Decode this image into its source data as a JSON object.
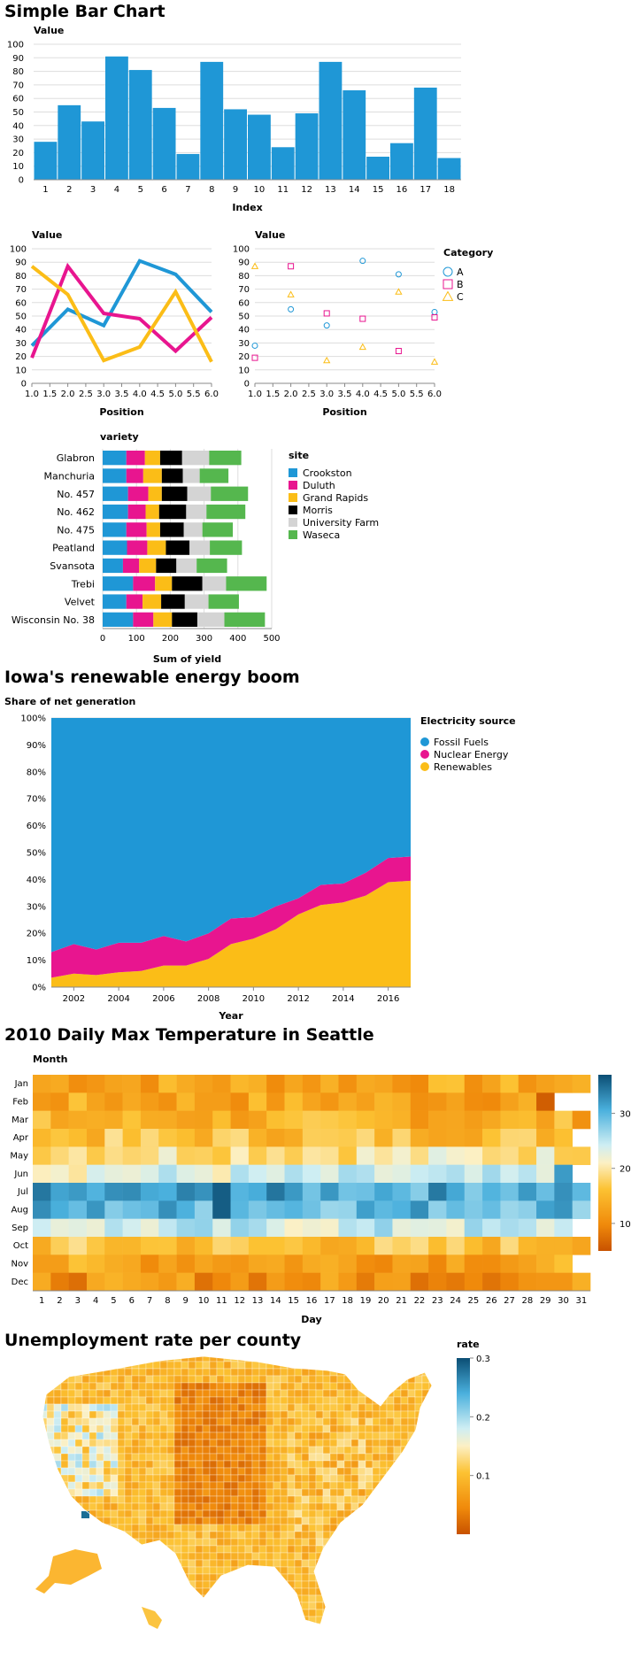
{
  "charts": {
    "bar": {
      "title": "Simple Bar Chart",
      "ylabel": "Value",
      "xlabel": "Index"
    },
    "line": {
      "ylabel": "Value",
      "xlabel": "Position"
    },
    "scatter": {
      "ylabel": "Value",
      "xlabel": "Position",
      "legend_title": "Category"
    },
    "barley": {
      "ylabel": "variety",
      "xlabel": "Sum of yield",
      "legend_title": "site"
    },
    "area": {
      "title": "Iowa's renewable energy boom",
      "ylabel": "Share of net generation",
      "xlabel": "Year",
      "legend_title": "Electricity source"
    },
    "heatmap": {
      "title": "2010 Daily Max Temperature in Seattle",
      "ylabel": "Month",
      "xlabel": "Day"
    },
    "map": {
      "title": "Unemployment rate per county",
      "legend_title": "rate"
    }
  },
  "chart_data": [
    {
      "type": "bar",
      "title": "Simple Bar Chart",
      "xlabel": "Index",
      "ylabel": "Value",
      "categories": [
        1,
        2,
        3,
        4,
        5,
        6,
        7,
        8,
        9,
        10,
        11,
        12,
        13,
        14,
        15,
        16,
        17,
        18
      ],
      "values": [
        28,
        55,
        43,
        91,
        81,
        53,
        19,
        87,
        52,
        48,
        24,
        49,
        87,
        66,
        17,
        27,
        68,
        16
      ],
      "ylim": [
        0,
        100
      ],
      "yticks": [
        0,
        10,
        20,
        30,
        40,
        50,
        60,
        70,
        80,
        90,
        100
      ],
      "color": "#1f97d6",
      "grid": true
    },
    {
      "type": "line",
      "xlabel": "Position",
      "ylabel": "Value",
      "x": [
        1,
        2,
        3,
        4,
        5,
        6
      ],
      "xticks": [
        "1.0",
        "1.5",
        "2.0",
        "2.5",
        "3.0",
        "3.5",
        "4.0",
        "4.5",
        "5.0",
        "5.5",
        "6.0"
      ],
      "xlim": [
        1,
        6
      ],
      "ylim": [
        0,
        100
      ],
      "yticks": [
        0,
        10,
        20,
        30,
        40,
        50,
        60,
        70,
        80,
        90,
        100
      ],
      "series": [
        {
          "values": [
            28,
            55,
            43,
            91,
            81,
            53
          ],
          "color": "#1f97d6"
        },
        {
          "values": [
            19,
            87,
            52,
            48,
            24,
            49
          ],
          "color": "#e8158f"
        },
        {
          "values": [
            87,
            66,
            17,
            27,
            68,
            16
          ],
          "color": "#fbbd17"
        }
      ],
      "grid": true
    },
    {
      "type": "scatter",
      "xlabel": "Position",
      "ylabel": "Value",
      "xticks": [
        "1.0",
        "1.5",
        "2.0",
        "2.5",
        "3.0",
        "3.5",
        "4.0",
        "4.5",
        "5.0",
        "5.5",
        "6.0"
      ],
      "xlim": [
        1,
        6
      ],
      "ylim": [
        0,
        100
      ],
      "yticks": [
        0,
        10,
        20,
        30,
        40,
        50,
        60,
        70,
        80,
        90,
        100
      ],
      "legend_title": "Category",
      "legend_position": "right",
      "series": [
        {
          "name": "A",
          "shape": "circle",
          "color": "#1f97d6",
          "x": [
            1,
            2,
            3,
            4,
            5,
            6
          ],
          "values": [
            28,
            55,
            43,
            91,
            81,
            53
          ]
        },
        {
          "name": "B",
          "shape": "square",
          "color": "#e8158f",
          "x": [
            1,
            2,
            3,
            4,
            5,
            6
          ],
          "values": [
            19,
            87,
            52,
            48,
            24,
            49
          ]
        },
        {
          "name": "C",
          "shape": "triangle",
          "color": "#fbbd17",
          "x": [
            1,
            2,
            3,
            4,
            5,
            6
          ],
          "values": [
            87,
            66,
            17,
            27,
            68,
            16
          ]
        }
      ],
      "grid": true
    },
    {
      "type": "bar",
      "orientation": "horizontal-stacked",
      "xlabel": "Sum of yield",
      "ylabel": "variety",
      "xlim": [
        0,
        500
      ],
      "xticks": [
        0,
        100,
        200,
        300,
        400,
        500
      ],
      "legend_title": "site",
      "legend_position": "right",
      "categories": [
        "Glabron",
        "Manchuria",
        "No. 457",
        "No. 462",
        "No. 475",
        "Peatland",
        "Svansota",
        "Trebi",
        "Velvet",
        "Wisconsin No. 38"
      ],
      "series": [
        {
          "name": "Crookston",
          "color": "#1f97d6",
          "values": [
            70,
            70,
            75,
            75,
            70,
            72,
            60,
            90,
            70,
            90
          ]
        },
        {
          "name": "Duluth",
          "color": "#e8158f",
          "values": [
            55,
            50,
            60,
            52,
            60,
            60,
            48,
            65,
            48,
            60
          ]
        },
        {
          "name": "Grand Rapids",
          "color": "#fbbd17",
          "values": [
            45,
            55,
            40,
            40,
            40,
            55,
            50,
            50,
            55,
            55
          ]
        },
        {
          "name": "Morris",
          "color": "#000000",
          "values": [
            65,
            62,
            75,
            80,
            70,
            70,
            60,
            90,
            70,
            75
          ]
        },
        {
          "name": "University Farm",
          "color": "#d4d4d4",
          "values": [
            80,
            50,
            70,
            60,
            55,
            60,
            60,
            70,
            70,
            80
          ]
        },
        {
          "name": "Waseca",
          "color": "#55b74e",
          "values": [
            95,
            85,
            110,
            115,
            90,
            95,
            90,
            120,
            90,
            120
          ]
        }
      ],
      "grid": true
    },
    {
      "type": "area",
      "stacked": "normalized",
      "title": "Iowa's renewable energy boom",
      "xlabel": "Year",
      "ylabel": "Share of net generation",
      "x": [
        2001,
        2002,
        2003,
        2004,
        2005,
        2006,
        2007,
        2008,
        2009,
        2010,
        2011,
        2012,
        2013,
        2014,
        2015,
        2016,
        2017
      ],
      "xticks": [
        2002,
        2004,
        2006,
        2008,
        2010,
        2012,
        2014,
        2016
      ],
      "xlim": [
        2001,
        2017
      ],
      "ylim": [
        0,
        1
      ],
      "yticks": [
        "0%",
        "10%",
        "20%",
        "30%",
        "40%",
        "50%",
        "60%",
        "70%",
        "80%",
        "90%",
        "100%"
      ],
      "legend_title": "Electricity source",
      "legend_position": "right",
      "series": [
        {
          "name": "Fossil Fuels",
          "color": "#1f97d6",
          "values": [
            0.87,
            0.84,
            0.86,
            0.835,
            0.835,
            0.81,
            0.83,
            0.8,
            0.745,
            0.74,
            0.7,
            0.67,
            0.62,
            0.615,
            0.575,
            0.52,
            0.515
          ]
        },
        {
          "name": "Nuclear Energy",
          "color": "#e8158f",
          "values": [
            0.095,
            0.11,
            0.095,
            0.11,
            0.105,
            0.11,
            0.09,
            0.095,
            0.095,
            0.08,
            0.085,
            0.06,
            0.075,
            0.07,
            0.085,
            0.09,
            0.09
          ]
        },
        {
          "name": "Renewables",
          "color": "#fbbd17",
          "values": [
            0.035,
            0.05,
            0.045,
            0.055,
            0.06,
            0.08,
            0.08,
            0.105,
            0.16,
            0.18,
            0.215,
            0.27,
            0.305,
            0.315,
            0.34,
            0.39,
            0.395
          ]
        }
      ],
      "grid": true
    },
    {
      "type": "heatmap",
      "title": "2010 Daily Max Temperature in Seattle",
      "xlabel": "Day",
      "ylabel": "Month",
      "x_categories": [
        1,
        2,
        3,
        4,
        5,
        6,
        7,
        8,
        9,
        10,
        11,
        12,
        13,
        14,
        15,
        16,
        17,
        18,
        19,
        20,
        21,
        22,
        23,
        24,
        25,
        26,
        27,
        28,
        29,
        30,
        31
      ],
      "y_categories": [
        "Jan",
        "Feb",
        "Mar",
        "Apr",
        "May",
        "Jun",
        "Jul",
        "Aug",
        "Sep",
        "Oct",
        "Nov",
        "Dec"
      ],
      "monthly_mean_max_temp": [
        13,
        13,
        14,
        16,
        20,
        23,
        31,
        30,
        24,
        16,
        13,
        11
      ],
      "notable_cells": [
        {
          "month": "Feb",
          "day": 29,
          "value": 6
        },
        {
          "month": "Jul",
          "day": 11,
          "value": 36
        },
        {
          "month": "Aug",
          "day": 11,
          "value": 36
        },
        {
          "month": "Jun",
          "day": 30,
          "value": 32
        }
      ],
      "color_scale": {
        "domain": [
          5,
          37
        ],
        "ticks": [
          10,
          20,
          30
        ],
        "scheme": "blue-yellow-orange (reversed)"
      }
    },
    {
      "type": "heatmap",
      "subtype": "choropleth",
      "title": "Unemployment rate per county",
      "legend_title": "rate",
      "color_scale": {
        "domain": [
          0,
          0.3
        ],
        "ticks": [
          "0.1",
          "0.2",
          "0.3"
        ],
        "scheme": "blue-yellow-orange (reversed)"
      }
    }
  ]
}
